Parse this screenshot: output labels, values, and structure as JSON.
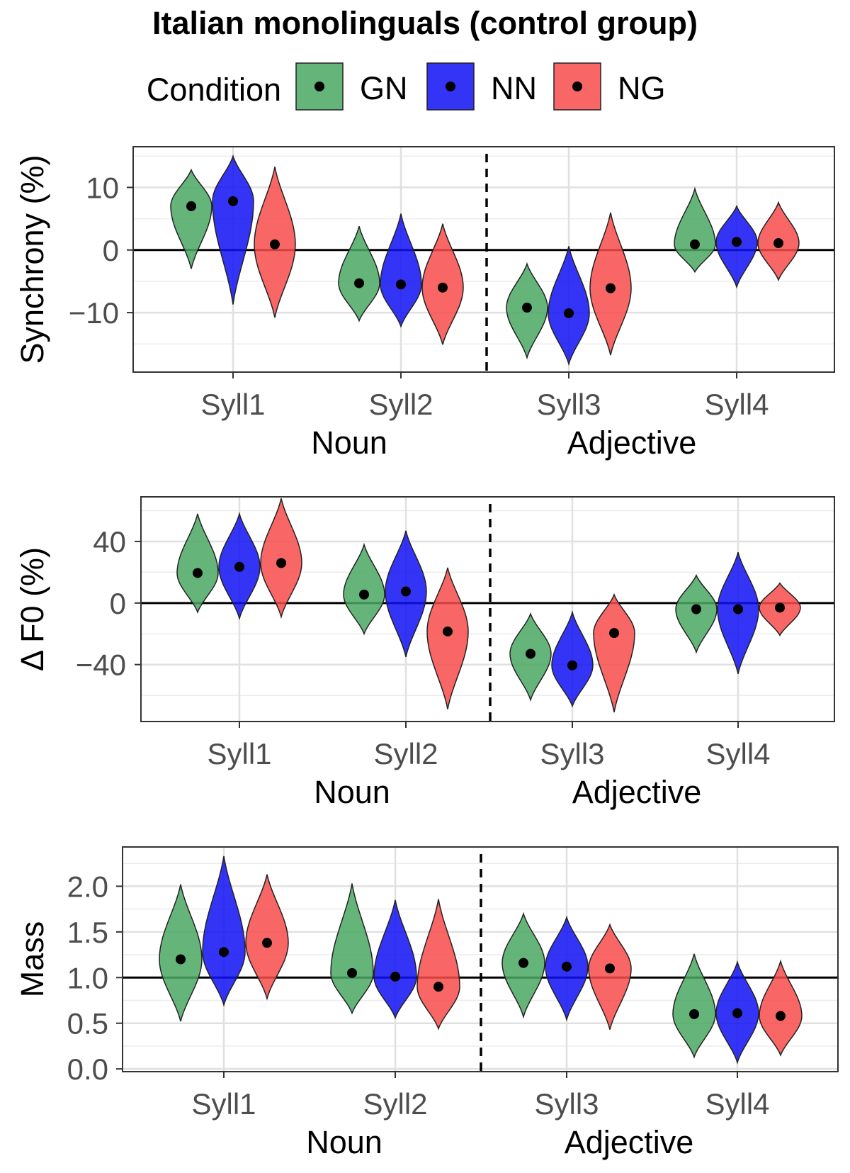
{
  "title": "Italian monolinguals (control group)",
  "legend": {
    "title": "Condition",
    "placement": "top",
    "items": [
      {
        "label": "GN",
        "color": "#4aa864"
      },
      {
        "label": "NN",
        "color": "#1010f5"
      },
      {
        "label": "NG",
        "color": "#f84b4b"
      }
    ]
  },
  "chart_data": [
    {
      "type": "violin",
      "ylabel": "Synchrony (%)",
      "xlabel": [
        "Noun",
        "Adjective"
      ],
      "categories": [
        "Syll1",
        "Syll2",
        "Syll3",
        "Syll4"
      ],
      "ylim": [
        -19.5,
        16.5
      ],
      "yticks": [
        {
          "value": 10,
          "label": "10"
        },
        {
          "value": 0,
          "label": "0"
        },
        {
          "value": -10,
          "label": "−10"
        }
      ],
      "reference_line": 0,
      "divider_between": [
        2,
        3
      ],
      "grid": true,
      "series": [
        {
          "name": "GN",
          "means": [
            7,
            -5.3,
            -9.2,
            0.9
          ],
          "min": [
            -3,
            -11.3,
            -17.2,
            -3.5
          ],
          "max": [
            12.8,
            3.8,
            -2.2,
            9.8
          ],
          "mode": [
            7,
            -5.3,
            -9.2,
            0.9
          ]
        },
        {
          "name": "NN",
          "means": [
            7.8,
            -5.5,
            -10.1,
            1.3
          ],
          "min": [
            -8.7,
            -12.2,
            -18.2,
            -5.9
          ],
          "max": [
            15,
            5.8,
            0.6,
            7
          ],
          "mode": [
            7.8,
            -5.5,
            -10.1,
            1.3
          ]
        },
        {
          "name": "NG",
          "means": [
            0.9,
            -6,
            -6.1,
            1.1
          ],
          "min": [
            -10.8,
            -15.1,
            -16.8,
            -4.8
          ],
          "max": [
            13.3,
            4.2,
            6,
            7.6
          ],
          "mode": [
            0.9,
            -6,
            -6.1,
            1.1
          ]
        }
      ]
    },
    {
      "type": "violin",
      "ylabel": "Δ F0 (%)",
      "xlabel": [
        "Noun",
        "Adjective"
      ],
      "categories": [
        "Syll1",
        "Syll2",
        "Syll3",
        "Syll4"
      ],
      "ylim": [
        -77,
        69
      ],
      "yticks": [
        {
          "value": 40,
          "label": "40"
        },
        {
          "value": 0,
          "label": "0"
        },
        {
          "value": -40,
          "label": "−40"
        }
      ],
      "reference_line": 0,
      "divider_between": [
        2,
        3
      ],
      "grid": true,
      "series": [
        {
          "name": "GN",
          "means": [
            19.5,
            5.5,
            -33,
            -4
          ],
          "min": [
            -6,
            -20,
            -63,
            -32
          ],
          "max": [
            58,
            38,
            -7,
            18
          ],
          "mode": [
            19.5,
            5.5,
            -33,
            -4
          ]
        },
        {
          "name": "NN",
          "means": [
            23.5,
            7.5,
            -40.5,
            -4
          ],
          "min": [
            -10,
            -35,
            -67,
            -46
          ],
          "max": [
            58,
            47,
            -6,
            33
          ],
          "mode": [
            23.5,
            7.5,
            -40.5,
            -4
          ]
        },
        {
          "name": "NG",
          "means": [
            26,
            -18.5,
            -19.5,
            -3
          ],
          "min": [
            -9,
            -69,
            -71,
            -21
          ],
          "max": [
            68,
            23,
            5.5,
            13
          ],
          "mode": [
            26,
            -18.5,
            -19.5,
            -3
          ]
        }
      ]
    },
    {
      "type": "violin",
      "ylabel": "Mass",
      "xlabel": [
        "Noun",
        "Adjective"
      ],
      "categories": [
        "Syll1",
        "Syll2",
        "Syll3",
        "Syll4"
      ],
      "ylim": [
        -0.03,
        2.43
      ],
      "yticks": [
        {
          "value": 2.0,
          "label": "2.0"
        },
        {
          "value": 1.5,
          "label": "1.5"
        },
        {
          "value": 1.0,
          "label": "1.0"
        },
        {
          "value": 0.5,
          "label": "0.5"
        },
        {
          "value": 0.0,
          "label": "0.0"
        }
      ],
      "reference_line": 1.0,
      "divider_between": [
        2,
        3
      ],
      "grid": true,
      "series": [
        {
          "name": "GN",
          "means": [
            1.2,
            1.05,
            1.16,
            0.6
          ],
          "min": [
            0.52,
            0.61,
            0.57,
            0.13
          ],
          "max": [
            2.02,
            2.03,
            1.7,
            1.26
          ],
          "mode": [
            1.2,
            1.05,
            1.16,
            0.6
          ]
        },
        {
          "name": "NN",
          "means": [
            1.28,
            1.01,
            1.12,
            0.61
          ],
          "min": [
            0.7,
            0.56,
            0.54,
            0.07
          ],
          "max": [
            2.33,
            1.85,
            1.66,
            1.17
          ],
          "mode": [
            1.28,
            1.01,
            1.12,
            0.61
          ]
        },
        {
          "name": "NG",
          "means": [
            1.38,
            0.9,
            1.1,
            0.58
          ],
          "min": [
            0.77,
            0.44,
            0.43,
            0.15
          ],
          "max": [
            2.13,
            1.86,
            1.58,
            1.18
          ],
          "mode": [
            1.38,
            0.9,
            1.1,
            0.58
          ]
        }
      ]
    }
  ]
}
